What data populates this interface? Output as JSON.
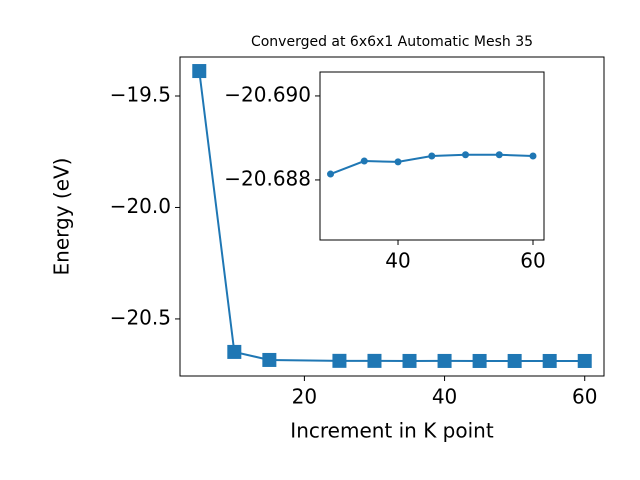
{
  "chart_data": [
    {
      "type": "line",
      "title": "Converged at 6x6x1 Automatic Mesh 35",
      "x_label": "Increment in K point",
      "y_label": "Energy (eV)",
      "x": [
        5,
        10,
        15,
        25,
        30,
        35,
        40,
        45,
        50,
        55,
        60
      ],
      "series": [
        {
          "color": "#1f77b4",
          "marker": "square",
          "values": [
            -19.388,
            -20.648,
            -20.684,
            -20.688,
            -20.68814,
            -20.68845,
            -20.68843,
            -20.68857,
            -20.6886,
            -20.6886,
            -20.68857
          ]
        }
      ],
      "xlim": [
        2.25,
        62.75
      ],
      "ylim": [
        -20.756,
        -19.325
      ],
      "xticks": [
        20,
        40,
        60
      ],
      "yticks": [
        {
          "value": -19.5,
          "label": "−19.5"
        },
        {
          "value": -20.0,
          "label": "−20.0"
        },
        {
          "value": -20.5,
          "label": "−20.5"
        }
      ]
    },
    {
      "type": "line",
      "x": [
        30,
        35,
        40,
        45,
        50,
        55,
        60
      ],
      "series": [
        {
          "color": "#1f77b4",
          "marker": "circle",
          "values": [
            -20.68814,
            -20.68845,
            -20.68843,
            -20.68857,
            -20.6886,
            -20.6886,
            -20.68857
          ]
        }
      ],
      "xlim": [
        28.44,
        61.63
      ],
      "ylim": [
        -20.68657,
        -20.69057
      ],
      "inverted_y": true,
      "xticks": [
        40,
        60
      ],
      "yticks": [
        {
          "value": -20.69,
          "label": "−20.690"
        },
        {
          "value": -20.688,
          "label": "−20.688"
        }
      ]
    }
  ]
}
